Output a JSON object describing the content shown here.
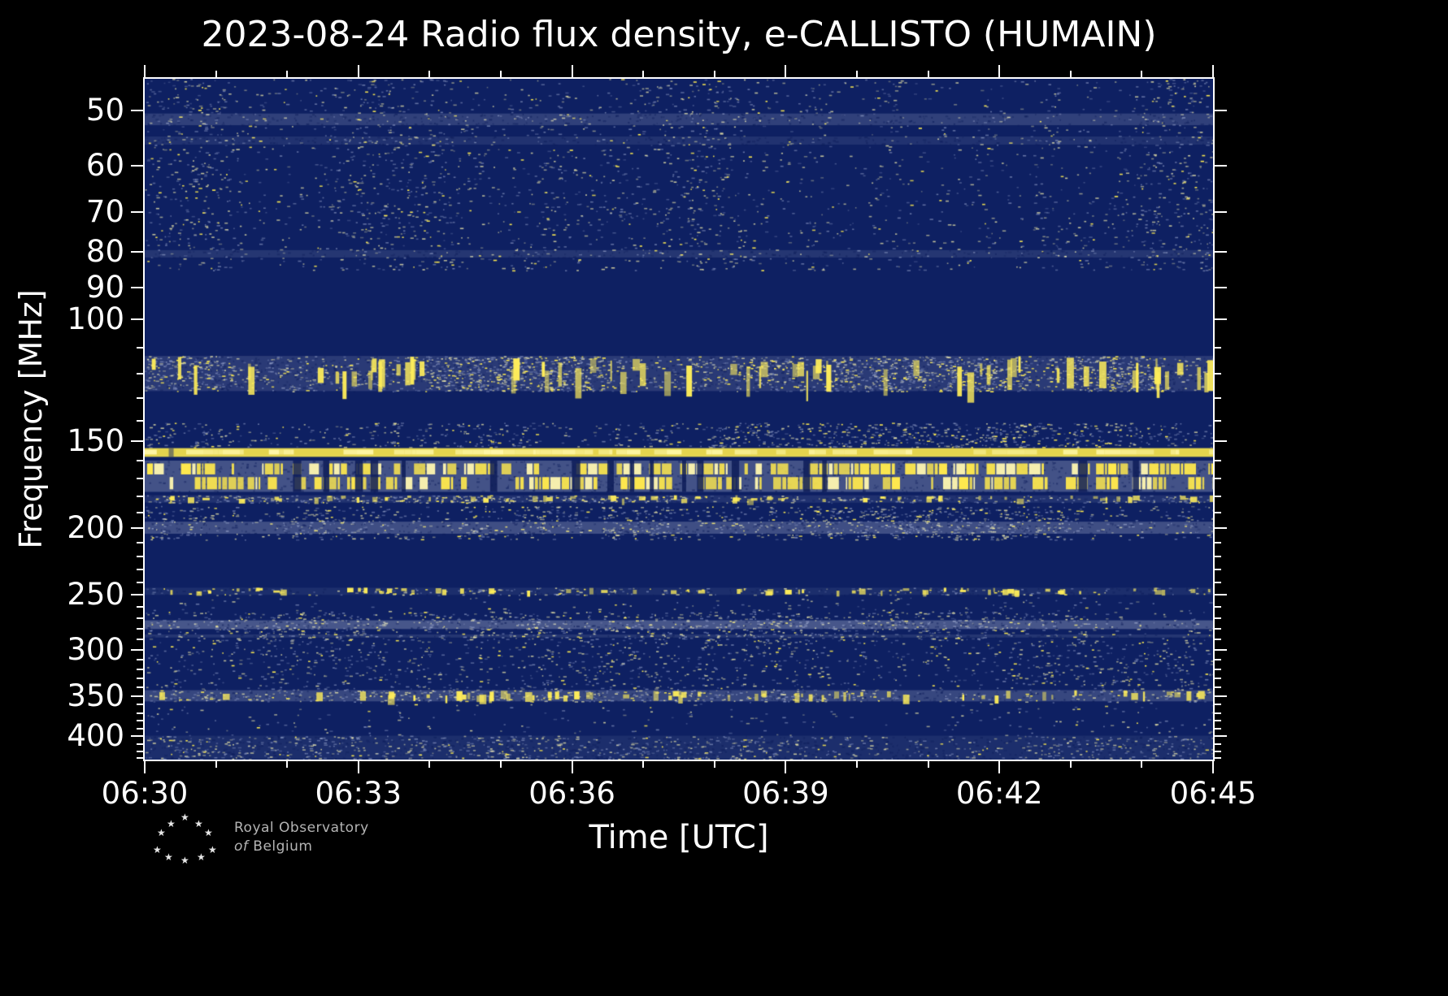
{
  "title": "2023-08-24 Radio flux density, e-CALLISTO (HUMAIN)",
  "axes": {
    "xlabel": "Time [UTC]",
    "ylabel": "Frequency [MHz]"
  },
  "logo": {
    "line1": "Royal Observatory",
    "line2_italic": "of",
    "line2": "Belgium",
    "star": "★"
  },
  "chart_data": {
    "type": "heatmap",
    "title": "2023-08-24 Radio flux density, e-CALLISTO (HUMAIN)",
    "xlabel": "Time [UTC]",
    "ylabel": "Frequency [MHz]",
    "time_range_utc": [
      "06:30",
      "06:45"
    ],
    "x_ticks": [
      "06:30",
      "06:33",
      "06:36",
      "06:39",
      "06:42",
      "06:45"
    ],
    "x_minor_total_minutes": 15,
    "y_scale": "log",
    "freq_range_mhz": [
      45,
      432
    ],
    "y_major_ticks": [
      50,
      60,
      70,
      80,
      90,
      100,
      150,
      200,
      250,
      300,
      350,
      400
    ],
    "y_minor_ticks": [
      110,
      120,
      130,
      140,
      160,
      170,
      180,
      190,
      210,
      220,
      230,
      240,
      260,
      270,
      280,
      290,
      310,
      320,
      330,
      340,
      360,
      370,
      380,
      390,
      410,
      420,
      430
    ],
    "colors": {
      "background": "#000000",
      "plot_base": "#0e2062",
      "speckle_pale": "#f2eca9",
      "speckle_blue": "#a0acd2",
      "bright_yellow": "#ffe94d",
      "haze": "#cdd3e8",
      "text": "#ffffff",
      "logo_text": "#b4b4b4"
    },
    "bands": [
      {
        "f_lo": 45,
        "f_hi": 85,
        "style": "speckle",
        "density": 0.12,
        "brightness": 0.8
      },
      {
        "f_lo": 50.5,
        "f_hi": 52.5,
        "style": "haze",
        "alpha": 0.18
      },
      {
        "f_lo": 54.5,
        "f_hi": 56,
        "style": "haze",
        "alpha": 0.1
      },
      {
        "f_lo": 79.5,
        "f_hi": 81.5,
        "style": "haze",
        "alpha": 0.12
      },
      {
        "f_lo": 85,
        "f_hi": 109,
        "style": "blank"
      },
      {
        "f_lo": 113,
        "f_hi": 127,
        "style": "active",
        "density": 0.55,
        "haze_alpha": 0.15,
        "brightness": 1.4
      },
      {
        "f_lo": 127,
        "f_hi": 141,
        "style": "blank"
      },
      {
        "f_lo": 141,
        "f_hi": 153,
        "style": "speckle",
        "density": 0.32,
        "brightness": 1.0
      },
      {
        "f_lo": 153.5,
        "f_hi": 158,
        "style": "line"
      },
      {
        "f_lo": 160,
        "f_hi": 177.5,
        "style": "dab",
        "haze_alpha": 0.28,
        "rows": [
          [
            161.5,
            167.5
          ],
          [
            169,
            176
          ]
        ],
        "dash_prob": 0.62
      },
      {
        "f_lo": 179.5,
        "f_hi": 184,
        "style": "active",
        "density": 0.5,
        "haze_alpha": 0.1,
        "brightness": 1.2
      },
      {
        "f_lo": 186,
        "f_hi": 208,
        "style": "speckle",
        "density": 0.34,
        "brightness": 1.0
      },
      {
        "f_lo": 196,
        "f_hi": 204,
        "style": "haze",
        "alpha": 0.26
      },
      {
        "f_lo": 208,
        "f_hi": 243,
        "style": "blank"
      },
      {
        "f_lo": 244,
        "f_hi": 250,
        "style": "active",
        "density": 0.35,
        "haze_alpha": 0.08,
        "brightness": 1.0
      },
      {
        "f_lo": 252,
        "f_hi": 264,
        "style": "speckle",
        "density": 0.05,
        "brightness": 0.5
      },
      {
        "f_lo": 264,
        "f_hi": 291,
        "style": "speckle",
        "density": 0.28,
        "brightness": 0.85
      },
      {
        "f_lo": 272,
        "f_hi": 280,
        "style": "haze",
        "alpha": 0.3
      },
      {
        "f_lo": 285,
        "f_hi": 288,
        "style": "haze",
        "alpha": 0.12
      },
      {
        "f_lo": 291,
        "f_hi": 343,
        "style": "speckle",
        "density": 0.14,
        "brightness": 0.75
      },
      {
        "f_lo": 343,
        "f_hi": 356,
        "style": "active",
        "density": 0.32,
        "haze_alpha": 0.22,
        "brightness": 0.9
      },
      {
        "f_lo": 356,
        "f_hi": 399,
        "style": "speckle",
        "density": 0.04,
        "brightness": 0.5
      },
      {
        "f_lo": 399,
        "f_hi": 432,
        "style": "speckle",
        "density": 0.24,
        "brightness": 0.7,
        "haze_alpha": 0.08
      }
    ]
  }
}
